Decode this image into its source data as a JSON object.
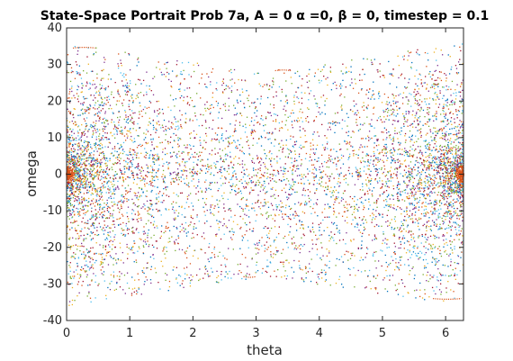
{
  "chart_data": {
    "type": "scatter",
    "title": "State-Space Portrait Prob 7a, A = 0 α =0, β = 0, timestep = 0.1",
    "xlabel": "theta",
    "ylabel": "omega",
    "xlim": [
      0,
      6.2832
    ],
    "ylim": [
      -40,
      40
    ],
    "xticks": [
      0,
      1,
      2,
      3,
      4,
      5,
      6
    ],
    "yticks": [
      -40,
      -30,
      -20,
      -10,
      0,
      10,
      20,
      30,
      40
    ],
    "grid": false,
    "legend": "none",
    "series_colors": [
      "#0072BD",
      "#D95319",
      "#EDB120",
      "#7E2F8E",
      "#77AC30",
      "#4DBEEE",
      "#A2142F"
    ],
    "clusters": [
      {
        "x": 0,
        "y": 0
      },
      {
        "x": 6.2832,
        "y": 0
      }
    ],
    "highlight_arcs": [
      {
        "x": [
          0.1,
          0.45
        ],
        "y": 34.5
      },
      {
        "x": 3.3,
        "y": 28.3,
        "x_end": 3.55
      },
      {
        "x": [
          2.8,
          3.0
        ],
        "y": -28.0
      },
      {
        "x": [
          5.8,
          6.25
        ],
        "y": -34.0
      }
    ]
  }
}
